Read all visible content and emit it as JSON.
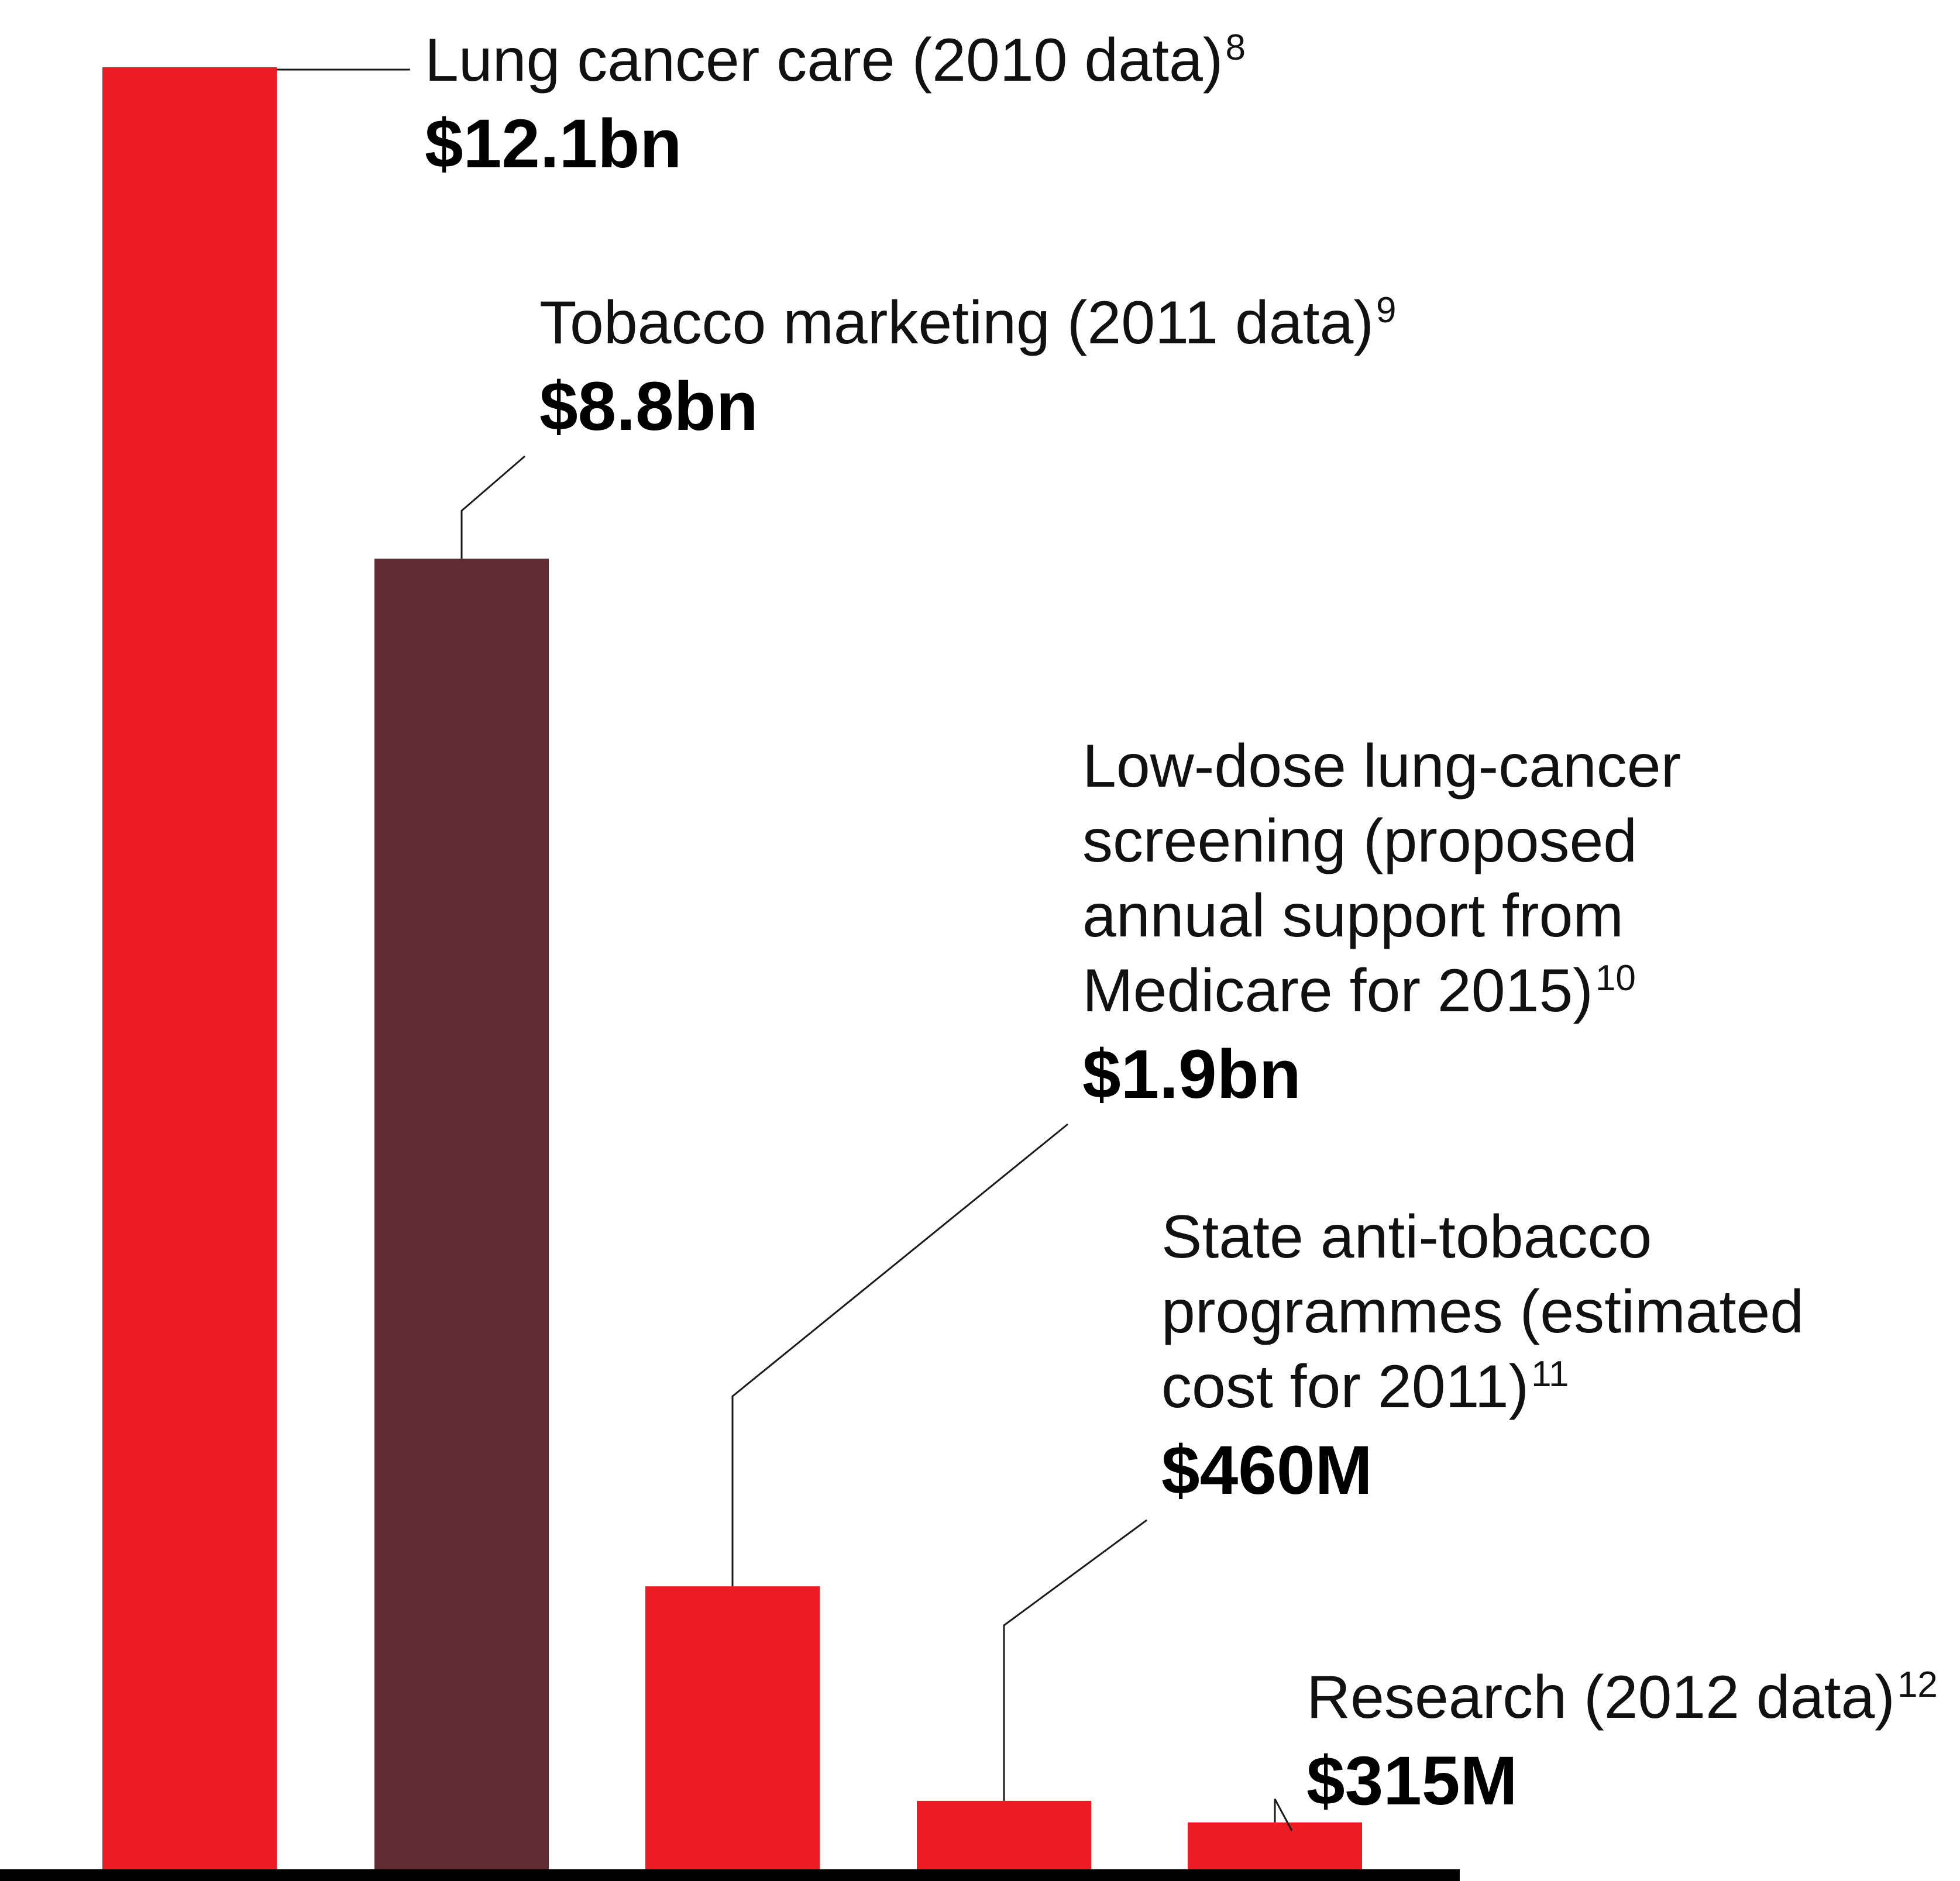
{
  "chart_data": {
    "type": "bar",
    "title": "",
    "xlabel": "",
    "ylabel": "",
    "unit": "USD",
    "ylim": [
      0,
      12.1
    ],
    "grid": false,
    "categories": [
      {
        "label_lines": [
          "Lung cancer care (2010 data)"
        ],
        "footnote": "8",
        "value_label": "$12.1bn",
        "value": 12.1,
        "color": "#ED1C24"
      },
      {
        "label_lines": [
          "Tobacco marketing (2011 data)"
        ],
        "footnote": "9",
        "value_label": "$8.8bn",
        "value": 8.8,
        "color": "#612B33"
      },
      {
        "label_lines": [
          "Low-dose lung-cancer",
          "screening (proposed",
          "annual support from",
          "Medicare for 2015)"
        ],
        "footnote": "10",
        "value_label": "$1.9bn",
        "value": 1.9,
        "color": "#ED1C24"
      },
      {
        "label_lines": [
          "State anti-tobacco",
          "programmes (estimated",
          "cost for 2011)"
        ],
        "footnote": "11",
        "value_label": "$460M",
        "value": 0.46,
        "color": "#ED1C24"
      },
      {
        "label_lines": [
          "Research (2012 data)"
        ],
        "footnote": "12",
        "value_label": "$315M",
        "value": 0.315,
        "color": "#ED1C24"
      }
    ]
  }
}
